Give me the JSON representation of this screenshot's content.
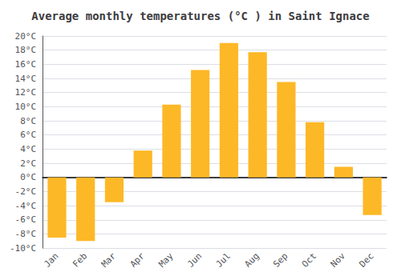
{
  "chart_data": {
    "type": "bar",
    "title": "Average monthly temperatures (°C ) in Saint Ignace",
    "categories": [
      "Jan",
      "Feb",
      "Mar",
      "Apr",
      "May",
      "Jun",
      "Jul",
      "Aug",
      "Sep",
      "Oct",
      "Nov",
      "Dec"
    ],
    "values": [
      -8.5,
      -9.0,
      -3.5,
      3.8,
      10.3,
      15.2,
      19.0,
      17.7,
      13.5,
      7.8,
      1.5,
      -5.3
    ],
    "color": "#FDB827",
    "ylim": [
      -10,
      20
    ],
    "yticks": [
      {
        "value": -10,
        "label": "-10°C"
      },
      {
        "value": -8,
        "label": "-8°C"
      },
      {
        "value": -6,
        "label": "-6°C"
      },
      {
        "value": -4,
        "label": "-4°C"
      },
      {
        "value": -2,
        "label": "-2°C"
      },
      {
        "value": 0,
        "label": "0°C"
      },
      {
        "value": 2,
        "label": "2°C"
      },
      {
        "value": 4,
        "label": "4°C"
      },
      {
        "value": 6,
        "label": "6°C"
      },
      {
        "value": 8,
        "label": "8°C"
      },
      {
        "value": 10,
        "label": "10°C"
      },
      {
        "value": 12,
        "label": "12°C"
      },
      {
        "value": 14,
        "label": "14°C"
      },
      {
        "value": 16,
        "label": "16°C"
      },
      {
        "value": 18,
        "label": "18°C"
      },
      {
        "value": 20,
        "label": "20°C"
      }
    ],
    "grid": true
  }
}
